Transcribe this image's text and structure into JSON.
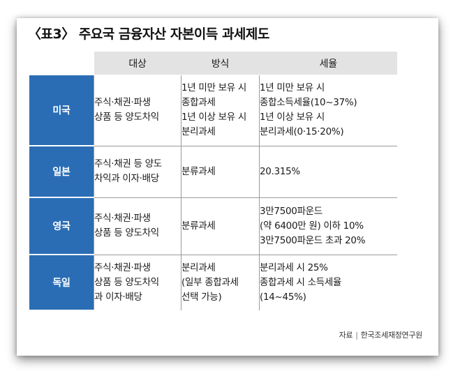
{
  "title": "〈표3〉 주요국 금융자산 자본이득 과세제도",
  "headers": {
    "target": "대상",
    "method": "방식",
    "rate": "세율"
  },
  "rows": [
    {
      "country": "미국",
      "target": [
        "주식·채권·파생",
        "상품 등 양도차익"
      ],
      "method": [
        "1년 미만 보유 시",
        "종합과세",
        "1년 이상 보유 시",
        "분리과세"
      ],
      "rate": [
        "1년 미만 보유 시",
        "종합소득세율(10~37%)",
        "1년 이상 보유 시",
        "분리과세(0·15·20%)"
      ]
    },
    {
      "country": "일본",
      "target": [
        "주식·채권 등 양도",
        "차익과 이자·배당"
      ],
      "method": [
        "분류과세"
      ],
      "rate": [
        "20.315%"
      ]
    },
    {
      "country": "영국",
      "target": [
        "주식·채권·파생",
        "상품 등 양도차익"
      ],
      "method": [
        "분류과세"
      ],
      "rate": [
        "3만7500파운드",
        "(약 6400만 원) 이하 10%",
        "3만7500파운드 초과 20%"
      ]
    },
    {
      "country": "독일",
      "target": [
        "주식·채권·파생",
        "상품 등 양도차익",
        "과 이자·배당"
      ],
      "method": [
        "분리과세",
        "(일부 종합과세",
        "선택 가능)"
      ],
      "rate": [
        "분리과세 시 25%",
        "종합과세 시 소득세율",
        "(14~45%)"
      ]
    }
  ],
  "source": {
    "label": "자료",
    "org": "한국조세재정연구원"
  },
  "colors": {
    "country_bg": "#2a6db5",
    "header_bg": "#e3e3e3"
  }
}
